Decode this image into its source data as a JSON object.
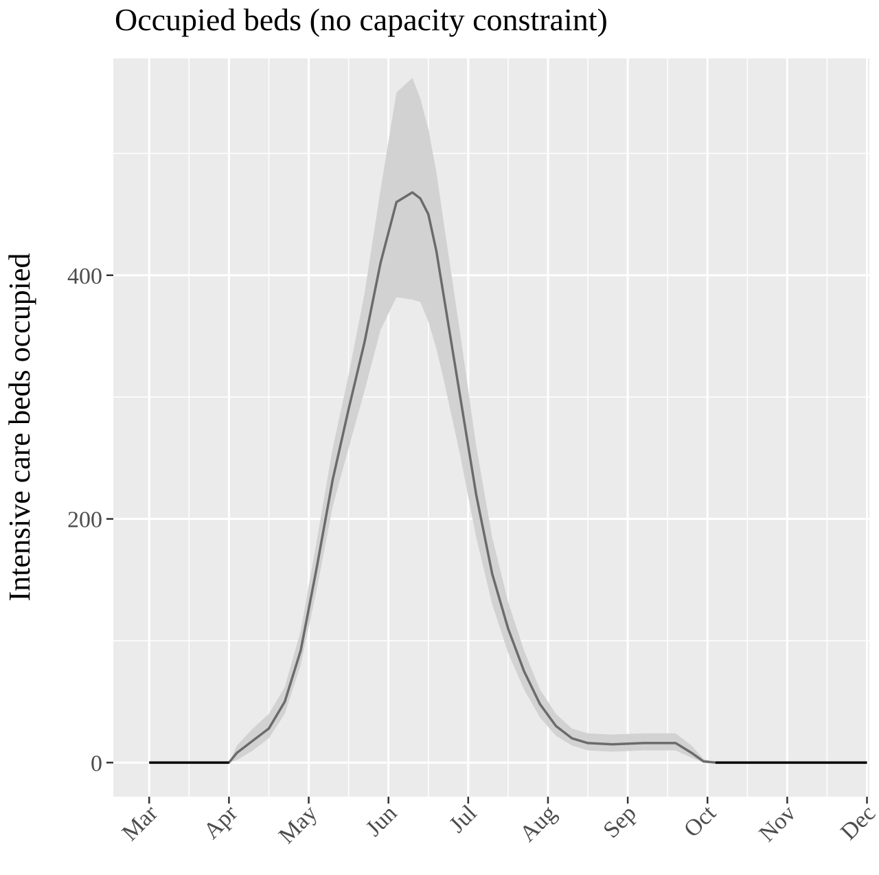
{
  "chart_data": {
    "type": "line",
    "title": "Occupied beds (no capacity constraint)",
    "xlabel": "",
    "ylabel": "Intensive care beds occupied",
    "x_ticks": [
      "Mar",
      "Apr",
      "May",
      "Jun",
      "Jul",
      "Aug",
      "Sep",
      "Oct",
      "Nov",
      "Dec"
    ],
    "y_ticks": [
      0,
      200,
      400
    ],
    "xlim": [
      -0.45,
      9.03
    ],
    "ylim": [
      -28,
      578
    ],
    "grid": true,
    "legend": "none",
    "colors": {
      "panel": "#ebebeb",
      "grid": "#ffffff",
      "band": "#d2d2d2",
      "line": "#6b6b6b",
      "zero_line": "#000000"
    },
    "series": [
      {
        "x": [
          0,
          1.0,
          1.1,
          1.3,
          1.5,
          1.7,
          1.9,
          2.1,
          2.3,
          2.5,
          2.7,
          2.9,
          3.1,
          3.3,
          3.4,
          3.5,
          3.6,
          3.7,
          3.9,
          4.1,
          4.3,
          4.5,
          4.7,
          4.9,
          5.1,
          5.3,
          5.5,
          5.8,
          6.2,
          6.6,
          6.8,
          6.95,
          7.1,
          7.2,
          9.0
        ],
        "y": [
          0,
          0,
          8,
          18,
          28,
          50,
          92,
          160,
          232,
          290,
          345,
          410,
          460,
          468,
          463,
          450,
          420,
          380,
          300,
          220,
          155,
          110,
          75,
          48,
          30,
          20,
          16,
          15,
          16,
          16,
          8,
          1,
          0,
          0,
          0
        ],
        "lower": [
          0,
          0,
          2,
          10,
          20,
          40,
          80,
          142,
          210,
          258,
          305,
          355,
          382,
          380,
          378,
          362,
          340,
          312,
          252,
          185,
          130,
          90,
          60,
          37,
          22,
          14,
          10,
          9,
          10,
          10,
          4,
          0,
          0,
          0,
          0
        ],
        "upper": [
          0,
          0,
          14,
          28,
          40,
          62,
          108,
          182,
          258,
          318,
          385,
          470,
          550,
          562,
          545,
          520,
          485,
          440,
          352,
          260,
          185,
          132,
          92,
          60,
          40,
          28,
          24,
          23,
          24,
          24,
          14,
          3,
          0,
          0,
          0
        ]
      }
    ]
  }
}
